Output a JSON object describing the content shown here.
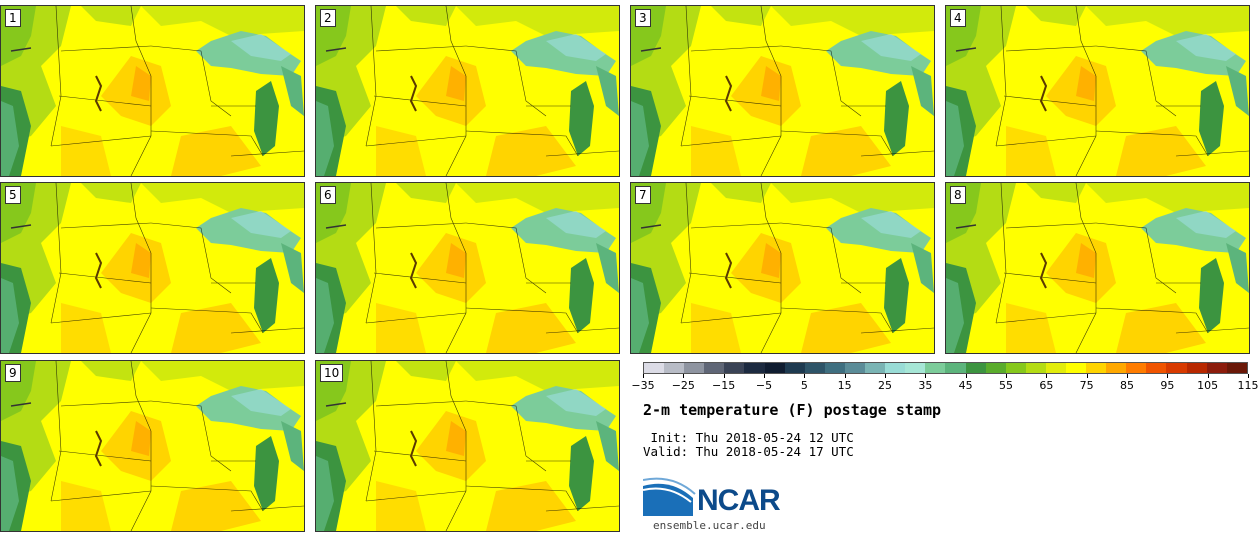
{
  "panels": [
    "1",
    "2",
    "3",
    "4",
    "5",
    "6",
    "7",
    "8",
    "9",
    "10"
  ],
  "colorbar": {
    "tick_labels": [
      "−35",
      "−25",
      "−15",
      "−5",
      "5",
      "15",
      "25",
      "35",
      "45",
      "55",
      "65",
      "75",
      "85",
      "95",
      "105",
      "115"
    ],
    "colors": [
      "#dcdce6",
      "#b8bcc6",
      "#8e94a0",
      "#5f6676",
      "#3a4356",
      "#1c2a40",
      "#0f1c30",
      "#1e3a50",
      "#2e5468",
      "#3f6f80",
      "#5b8c98",
      "#7ab4b4",
      "#99dcd6",
      "#a6e6d6",
      "#7ccc9a",
      "#5cb47c",
      "#3c9440",
      "#5aac2c",
      "#86c81c",
      "#b4dc14",
      "#e2ec0c",
      "#ffff00",
      "#ffd400",
      "#ffa800",
      "#ff7c00",
      "#f05400",
      "#d83a00",
      "#b82800",
      "#8c1c0c",
      "#6a1808"
    ]
  },
  "title": "2-m temperature (F) postage stamp",
  "init": " Init: Thu 2018-05-24 12 UTC",
  "valid": "Valid: Thu 2018-05-24 17 UTC",
  "logo": {
    "text": "NCAR"
  },
  "site": "ensemble.ucar.edu"
}
